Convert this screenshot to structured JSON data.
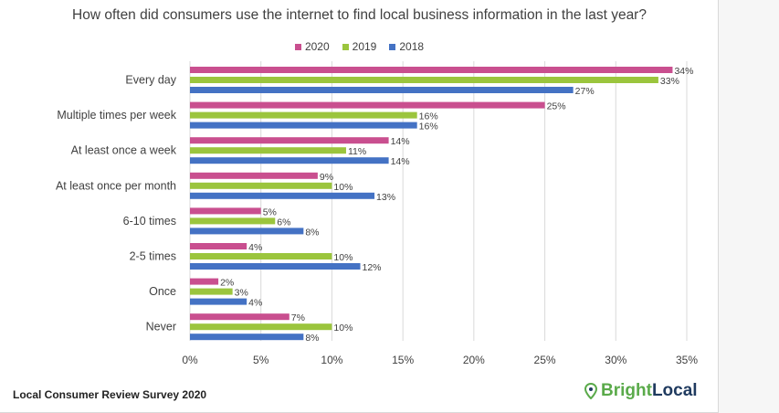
{
  "chart_data": {
    "type": "bar",
    "orientation": "horizontal",
    "title": "How often did consumers use the internet to find local business information in the last year?",
    "categories": [
      "Every day",
      "Multiple times per week",
      "At least once a week",
      "At least once per month",
      "6-10 times",
      "2-5 times",
      "Once",
      "Never"
    ],
    "series": [
      {
        "name": "2020",
        "color": "#c94f8f",
        "values": [
          34,
          25,
          14,
          9,
          5,
          4,
          2,
          7
        ]
      },
      {
        "name": "2019",
        "color": "#9bc53d",
        "values": [
          33,
          16,
          11,
          10,
          6,
          10,
          3,
          10
        ]
      },
      {
        "name": "2018",
        "color": "#4472c4",
        "values": [
          27,
          16,
          14,
          13,
          8,
          12,
          4,
          8
        ]
      }
    ],
    "xlim": [
      0,
      35
    ],
    "xticks": [
      "0%",
      "5%",
      "10%",
      "15%",
      "20%",
      "25%",
      "30%",
      "35%"
    ],
    "value_suffix": "%",
    "grid": true,
    "legend_position": "top"
  },
  "footer": {
    "source": "Local Consumer Review Survey 2020"
  },
  "brand": {
    "part1": "Bright",
    "part2": "Local",
    "icon": "map-pin-icon"
  }
}
